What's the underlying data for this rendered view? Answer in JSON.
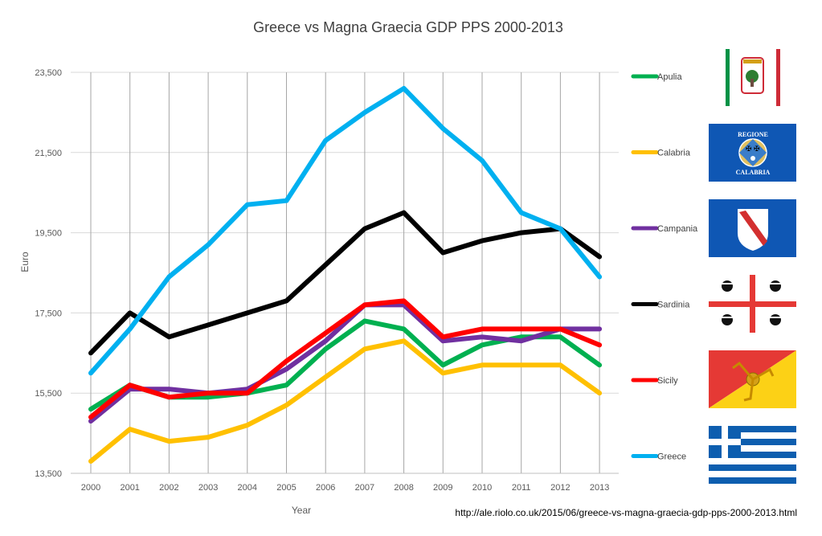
{
  "chart_data": {
    "type": "line",
    "title": "Greece vs Magna Graecia GDP PPS 2000-2013",
    "xlabel": "Year",
    "ylabel": "Euro",
    "categories": [
      "2000",
      "2001",
      "2002",
      "2003",
      "2004",
      "2005",
      "2006",
      "2007",
      "2008",
      "2009",
      "2010",
      "2011",
      "2012",
      "2013"
    ],
    "ylim": [
      13500,
      23500
    ],
    "yticks": [
      13500,
      15500,
      17500,
      19500,
      21500,
      23500
    ],
    "ytick_labels": [
      "13,500",
      "15,500",
      "17,500",
      "19,500",
      "21,500",
      "23,500"
    ],
    "grid": "vertical lines at categories",
    "legend_position": "right",
    "series": [
      {
        "name": "Apulia",
        "color": "#00b050",
        "values": [
          15100,
          15700,
          15400,
          15400,
          15500,
          15700,
          16600,
          17300,
          17100,
          16200,
          16700,
          16900,
          16900,
          16200
        ]
      },
      {
        "name": "Calabria",
        "color": "#ffc000",
        "values": [
          13800,
          14600,
          14300,
          14400,
          14700,
          15200,
          15900,
          16600,
          16800,
          16000,
          16200,
          16200,
          16200,
          15500
        ]
      },
      {
        "name": "Campania",
        "color": "#7030a0",
        "values": [
          14800,
          15600,
          15600,
          15500,
          15600,
          16100,
          16800,
          17700,
          17700,
          16800,
          16900,
          16800,
          17100,
          17100
        ]
      },
      {
        "name": "Sardinia",
        "color": "#000000",
        "values": [
          16500,
          17500,
          16900,
          17200,
          17500,
          17800,
          18700,
          19600,
          20000,
          19000,
          19300,
          19500,
          19600,
          18900
        ]
      },
      {
        "name": "Sicily",
        "color": "#ff0000",
        "values": [
          14900,
          15700,
          15400,
          15500,
          15500,
          16300,
          17000,
          17700,
          17800,
          16900,
          17100,
          17100,
          17100,
          16700
        ]
      },
      {
        "name": "Greece",
        "color": "#00b0f0",
        "values": [
          16000,
          17100,
          18400,
          19200,
          20200,
          20300,
          21800,
          22500,
          23100,
          22100,
          21300,
          20000,
          19600,
          18400
        ]
      }
    ]
  },
  "legend": [
    {
      "label": "Apulia",
      "flag": "apulia-flag"
    },
    {
      "label": "Calabria",
      "flag": "calabria-flag"
    },
    {
      "label": "Campania",
      "flag": "campania-flag"
    },
    {
      "label": "Sardinia",
      "flag": "sardinia-flag"
    },
    {
      "label": "Sicily",
      "flag": "sicily-flag"
    },
    {
      "label": "Greece",
      "flag": "greece-flag"
    }
  ],
  "flags": {
    "calabria_top": "REGIONE",
    "calabria_bottom": "CALABRIA"
  },
  "source_url": "http://ale.riolo.co.uk/2015/06/greece-vs-magna-graecia-gdp-pps-2000-2013.html"
}
